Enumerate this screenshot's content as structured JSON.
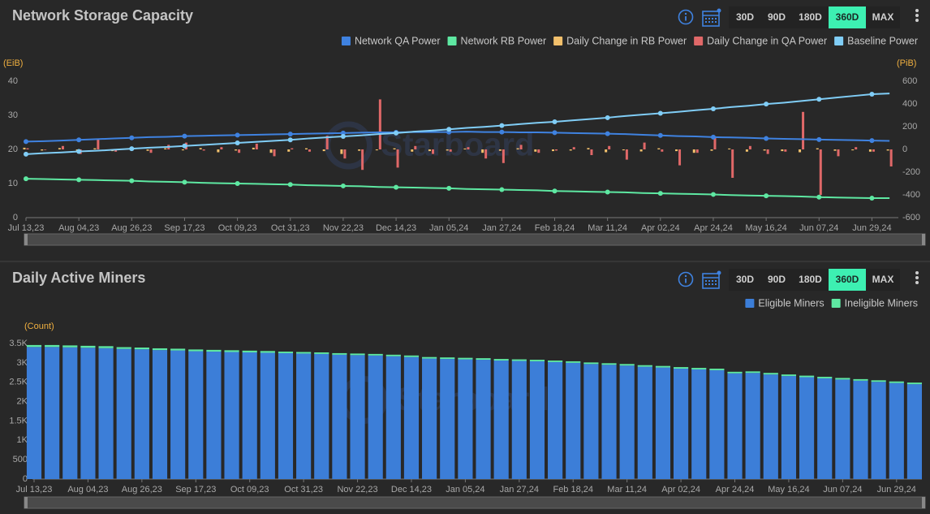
{
  "chart_data": [
    {
      "type": "combo",
      "title": "Network Storage Capacity",
      "ranges": [
        "30D",
        "90D",
        "180D",
        "360D",
        "MAX"
      ],
      "selected_range": "360D",
      "watermark": "Starboard",
      "y_label": "(EiB)",
      "y2_label": "(PiB)",
      "categories": [
        "Jul 13,23",
        null,
        null,
        "Aug 04,23",
        null,
        null,
        "Aug 26,23",
        null,
        null,
        "Sep 17,23",
        null,
        null,
        "Oct 09,23",
        null,
        null,
        "Oct 31,23",
        null,
        null,
        "Nov 22,23",
        null,
        null,
        "Dec 14,23",
        null,
        null,
        "Jan 05,24",
        null,
        null,
        "Jan 27,24",
        null,
        null,
        "Feb 18,24",
        null,
        null,
        "Mar 11,24",
        null,
        null,
        "Apr 02,24",
        null,
        null,
        "Apr 24,24",
        null,
        null,
        "May 16,24",
        null,
        null,
        "Jun 07,24",
        null,
        null,
        "Jun 29,24",
        null
      ],
      "ylim": [
        0,
        40
      ],
      "yticks": [
        0,
        10,
        20,
        30,
        40
      ],
      "y2lim": [
        -600,
        600
      ],
      "y2ticks": [
        -600,
        -400,
        -200,
        0,
        200,
        400,
        600
      ],
      "legend": "top-right",
      "series": [
        {
          "name": "Network QA Power",
          "type": "line",
          "color": "#3f82e0",
          "values": [
            22.3,
            22.4,
            22.6,
            22.8,
            23.0,
            23.2,
            23.4,
            23.6,
            23.7,
            23.9,
            24.0,
            24.1,
            24.2,
            24.3,
            24.4,
            24.5,
            24.6,
            24.7,
            24.8,
            24.9,
            25.0,
            25.0,
            25.1,
            25.1,
            25.1,
            25.2,
            25.1,
            25.1,
            25.0,
            25.0,
            24.9,
            24.8,
            24.7,
            24.6,
            24.5,
            24.3,
            24.1,
            23.9,
            23.8,
            23.6,
            23.5,
            23.4,
            23.2,
            23.1,
            23.0,
            22.9,
            22.8,
            22.7,
            22.6,
            22.5
          ]
        },
        {
          "name": "Network RB Power",
          "type": "line",
          "color": "#5ee8a2",
          "values": [
            11.4,
            11.3,
            11.2,
            11.1,
            11.0,
            10.9,
            10.8,
            10.6,
            10.5,
            10.4,
            10.2,
            10.1,
            10.0,
            9.9,
            9.8,
            9.7,
            9.5,
            9.4,
            9.3,
            9.2,
            9.0,
            8.9,
            8.8,
            8.7,
            8.6,
            8.4,
            8.3,
            8.2,
            8.1,
            8.0,
            7.8,
            7.7,
            7.6,
            7.5,
            7.4,
            7.2,
            7.1,
            7.0,
            6.9,
            6.8,
            6.6,
            6.5,
            6.4,
            6.3,
            6.2,
            6.0,
            5.9,
            5.8,
            5.7,
            5.7
          ]
        },
        {
          "name": "Daily Change in RB Power",
          "type": "bar",
          "axis": "y2",
          "color": "#f2c06c",
          "values": [
            15,
            -10,
            12,
            -20,
            10,
            -15,
            8,
            -12,
            10,
            -8,
            12,
            -25,
            -10,
            15,
            -30,
            -20,
            10,
            -15,
            -40,
            -12,
            -8,
            10,
            -20,
            -15,
            -10,
            8,
            -30,
            -12,
            10,
            -20,
            -15,
            -10,
            12,
            -25,
            -8,
            -18,
            10,
            -15,
            -30,
            -12,
            8,
            -20,
            -10,
            -15,
            -25,
            10,
            -12,
            -8,
            -20,
            -10
          ]
        },
        {
          "name": "Daily Change in QA Power",
          "type": "bar",
          "axis": "y2",
          "color": "#e06868",
          "values": [
            10,
            -5,
            30,
            -40,
            90,
            -20,
            10,
            -30,
            40,
            60,
            -10,
            20,
            -30,
            50,
            -60,
            10,
            -20,
            120,
            -80,
            -180,
            440,
            -160,
            30,
            -40,
            -20,
            20,
            -80,
            -120,
            40,
            -30,
            -10,
            20,
            -50,
            30,
            -90,
            60,
            -20,
            -140,
            -30,
            100,
            -250,
            30,
            -40,
            -20,
            330,
            -400,
            -60,
            20,
            -20,
            -150
          ]
        },
        {
          "name": "Baseline Power",
          "type": "line",
          "color": "#80cdf6",
          "values": [
            18.6,
            18.9,
            19.1,
            19.4,
            19.6,
            19.9,
            20.2,
            20.5,
            20.7,
            21.0,
            21.3,
            21.6,
            21.9,
            22.2,
            22.5,
            22.8,
            23.2,
            23.5,
            23.8,
            24.1,
            24.5,
            24.8,
            25.2,
            25.5,
            25.9,
            26.3,
            26.6,
            27.0,
            27.4,
            27.8,
            28.1,
            28.5,
            28.9,
            29.3,
            29.8,
            30.2,
            30.6,
            31.0,
            31.5,
            31.9,
            32.4,
            32.8,
            33.3,
            33.7,
            34.2,
            34.7,
            35.2,
            35.7,
            36.2,
            36.4
          ]
        }
      ]
    },
    {
      "type": "stacked_bar",
      "title": "Daily Active Miners",
      "ranges": [
        "30D",
        "90D",
        "180D",
        "360D",
        "MAX"
      ],
      "selected_range": "360D",
      "watermark": "Starboard",
      "y_label": "(Count)",
      "categories": [
        "Jul 13,23",
        null,
        null,
        "Aug 04,23",
        null,
        null,
        "Aug 26,23",
        null,
        null,
        "Sep 17,23",
        null,
        null,
        "Oct 09,23",
        null,
        null,
        "Oct 31,23",
        null,
        null,
        "Nov 22,23",
        null,
        null,
        "Dec 14,23",
        null,
        null,
        "Jan 05,24",
        null,
        null,
        "Jan 27,24",
        null,
        null,
        "Feb 18,24",
        null,
        null,
        "Mar 11,24",
        null,
        null,
        "Apr 02,24",
        null,
        null,
        "Apr 24,24",
        null,
        null,
        "May 16,24",
        null,
        null,
        "Jun 07,24",
        null,
        null,
        "Jun 29,24",
        null
      ],
      "ylim": [
        0,
        3500
      ],
      "yticks": [
        0,
        500,
        {
          "value": 1000,
          "label": "1K"
        },
        {
          "value": 1500,
          "label": "1.5K"
        },
        {
          "value": 2000,
          "label": "2K"
        },
        {
          "value": 2500,
          "label": "2.5K"
        },
        {
          "value": 3000,
          "label": "3K"
        },
        {
          "value": 3500,
          "label": "3.5K"
        }
      ],
      "legend": "top-right",
      "series": [
        {
          "name": "Eligible Miners",
          "color": "#3c7ed8",
          "values": [
            3410,
            3410,
            3400,
            3390,
            3380,
            3360,
            3350,
            3330,
            3320,
            3300,
            3290,
            3280,
            3270,
            3260,
            3250,
            3240,
            3230,
            3210,
            3200,
            3190,
            3170,
            3150,
            3110,
            3100,
            3090,
            3080,
            3060,
            3050,
            3040,
            3020,
            3000,
            2970,
            2950,
            2930,
            2900,
            2880,
            2850,
            2830,
            2810,
            2730,
            2740,
            2700,
            2660,
            2630,
            2600,
            2570,
            2540,
            2510,
            2480,
            2450
          ]
        },
        {
          "name": "Ineligible Miners",
          "color": "#5ee8a2",
          "values": [
            50,
            50,
            50,
            50,
            50,
            45,
            45,
            45,
            45,
            45,
            45,
            45,
            45,
            45,
            40,
            40,
            40,
            40,
            40,
            40,
            40,
            40,
            40,
            40,
            40,
            40,
            40,
            40,
            40,
            40,
            40,
            40,
            40,
            40,
            40,
            40,
            40,
            40,
            40,
            40,
            40,
            40,
            40,
            40,
            40,
            40,
            40,
            40,
            40,
            40
          ]
        }
      ]
    }
  ]
}
